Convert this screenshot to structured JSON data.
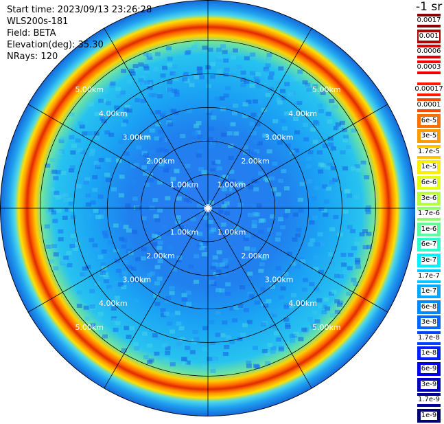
{
  "info": {
    "start_time": "Start time: 2023/09/13 23:26:28",
    "instrument": "WLS200s-181",
    "field": "Field: BETA",
    "elevation": "Elevation(deg): 35.30",
    "nrays": "NRays: 120"
  },
  "colorbar": {
    "unit": "-1 sr",
    "upper": [
      {
        "label": "0.0017",
        "color": "#8b0000"
      },
      {
        "label": "0.001",
        "color": "#b00000"
      },
      {
        "label": "0.0006",
        "color": "#d40000"
      },
      {
        "label": "0.0003",
        "color": "#f00000"
      }
    ],
    "lower": [
      {
        "label": "0.00017",
        "color": "#ff1a00"
      },
      {
        "label": "0.0001",
        "color": "#ff4500"
      },
      {
        "label": "6e-5",
        "color": "#ff7000"
      },
      {
        "label": "3e-5",
        "color": "#ff9a00"
      },
      {
        "label": "1.7e-5",
        "color": "#ffc400"
      },
      {
        "label": "1e-5",
        "color": "#ffee00"
      },
      {
        "label": "6e-6",
        "color": "#e4ff10"
      },
      {
        "label": "3e-6",
        "color": "#b8ff3c"
      },
      {
        "label": "1.7e-6",
        "color": "#8cff6a"
      },
      {
        "label": "1e-6",
        "color": "#5cff9c"
      },
      {
        "label": "6e-7",
        "color": "#2cffcc"
      },
      {
        "label": "3e-7",
        "color": "#00f0ff"
      },
      {
        "label": "1.7e-7",
        "color": "#00c8ff"
      },
      {
        "label": "1e-7",
        "color": "#00a8ff"
      },
      {
        "label": "6e-8",
        "color": "#0088ff"
      },
      {
        "label": "3e-8",
        "color": "#0066ff"
      },
      {
        "label": "1.7e-8",
        "color": "#0044ff"
      },
      {
        "label": "1e-8",
        "color": "#0020ff"
      },
      {
        "label": "6e-9",
        "color": "#0000e8"
      },
      {
        "label": "3e-9",
        "color": "#0000c0"
      },
      {
        "label": "1.7e-9",
        "color": "#00009a"
      },
      {
        "label": "1e-9",
        "color": "#000070"
      }
    ]
  },
  "ppi": {
    "rings": [
      {
        "label": "1.00km",
        "km": 1
      },
      {
        "label": "2.00km",
        "km": 2
      },
      {
        "label": "3.00km",
        "km": 3
      },
      {
        "label": "4.00km",
        "km": 4
      },
      {
        "label": "5.00km",
        "km": 5
      }
    ],
    "max_range_km": 6.2,
    "spokes_deg": 30,
    "colors": {
      "inner": "#1f7cf0",
      "mid": "#1ea8f5",
      "outer_band": "#f4a000",
      "band_core": "#e03000",
      "edge": "#1a6fe0"
    }
  }
}
